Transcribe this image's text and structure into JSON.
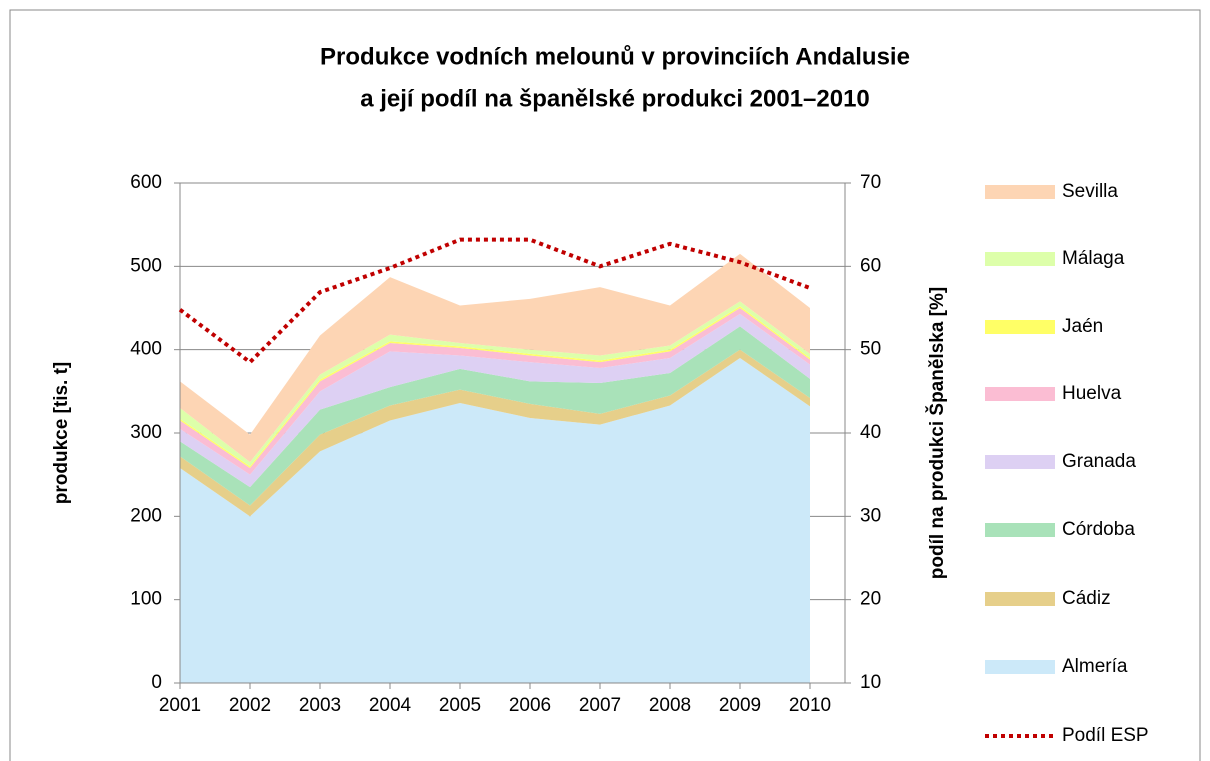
{
  "chart_data": {
    "type": "stacked_area",
    "title": "Produkce vodních melounů v provinciích Andalusie",
    "subtitle": "a její podíl na španělské produkci 2001–2010",
    "ylabel": "produkce [tis. t]",
    "y2label": "podíl na produkci Španělska [%]",
    "categories": [
      "2001",
      "2002",
      "2003",
      "2004",
      "2005",
      "2006",
      "2007",
      "2008",
      "2009",
      "2010"
    ],
    "ylim": [
      0,
      600
    ],
    "yticks": [
      0,
      100,
      200,
      300,
      400,
      500,
      600
    ],
    "y2lim": [
      10,
      70
    ],
    "y2ticks": [
      10,
      20,
      30,
      40,
      50,
      60,
      70
    ],
    "grid": true,
    "legend": "right",
    "series": [
      {
        "name": "Almería",
        "color": "#cce9f9",
        "values": [
          258,
          200,
          278,
          315,
          336,
          318,
          310,
          333,
          390,
          332
        ]
      },
      {
        "name": "Cádiz",
        "color": "#e6cf8a",
        "values": [
          14,
          13,
          20,
          18,
          16,
          17,
          13,
          12,
          10,
          10
        ]
      },
      {
        "name": "Córdoba",
        "color": "#a9e2b9",
        "values": [
          18,
          22,
          30,
          22,
          25,
          27,
          37,
          27,
          28,
          23
        ]
      },
      {
        "name": "Granada",
        "color": "#ddd0f3",
        "values": [
          15,
          15,
          22,
          43,
          16,
          23,
          18,
          18,
          15,
          17
        ]
      },
      {
        "name": "Huelva",
        "color": "#fbbdd3",
        "values": [
          10,
          8,
          12,
          10,
          9,
          8,
          7,
          8,
          7,
          6
        ]
      },
      {
        "name": "Jaén",
        "color": "#ffff66",
        "values": [
          2,
          2,
          2,
          2,
          2,
          2,
          2,
          2,
          2,
          2
        ]
      },
      {
        "name": "Málaga",
        "color": "#ddffaa",
        "values": [
          13,
          5,
          6,
          8,
          4,
          5,
          6,
          5,
          6,
          5
        ]
      },
      {
        "name": "Sevilla",
        "color": "#fdd5b4",
        "values": [
          32,
          33,
          47,
          69,
          45,
          61,
          82,
          48,
          57,
          55
        ]
      },
      {
        "name": "Podíl ESP",
        "color": "#c00000",
        "type": "line",
        "axis": "y2",
        "values": [
          54.8,
          48.5,
          56.9,
          59.8,
          63.2,
          63.2,
          60,
          62.7,
          60.5,
          57.4
        ]
      }
    ]
  }
}
